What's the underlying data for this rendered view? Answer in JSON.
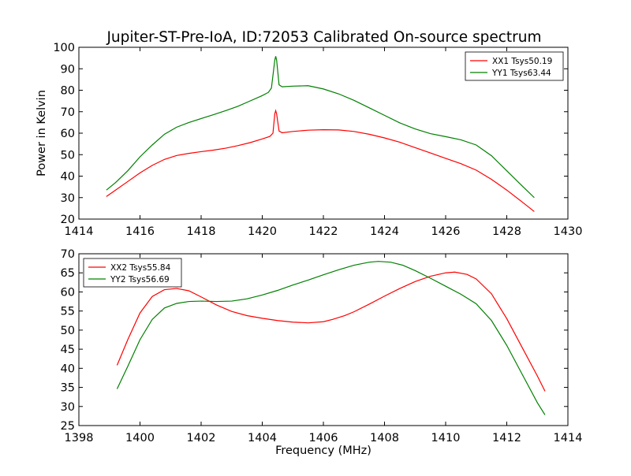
{
  "figure_title": "Jupiter-ST-Pre-IoA, ID:72053 Calibrated On-source spectrum",
  "chart_data": [
    {
      "type": "line",
      "title": "Jupiter-ST-Pre-IoA, ID:72053 Calibrated On-source spectrum",
      "xlabel": "",
      "ylabel": "Power in Kelvin",
      "xlim": [
        1414,
        1430
      ],
      "ylim": [
        20,
        100
      ],
      "xticks": [
        1414,
        1416,
        1418,
        1420,
        1422,
        1424,
        1426,
        1428,
        1430
      ],
      "yticks": [
        20,
        30,
        40,
        50,
        60,
        70,
        80,
        90,
        100
      ],
      "grid": false,
      "legend_position": "upper right",
      "series": [
        {
          "name": "XX1 Tsys50.19",
          "color": "#ff0000",
          "points": [
            [
              1414.9,
              30.5
            ],
            [
              1415.2,
              33.5
            ],
            [
              1415.6,
              37.5
            ],
            [
              1416.0,
              41.5
            ],
            [
              1416.4,
              45.0
            ],
            [
              1416.8,
              47.8
            ],
            [
              1417.2,
              49.6
            ],
            [
              1417.6,
              50.6
            ],
            [
              1418.0,
              51.4
            ],
            [
              1418.4,
              52.1
            ],
            [
              1418.8,
              53.0
            ],
            [
              1419.2,
              54.2
            ],
            [
              1419.6,
              55.6
            ],
            [
              1420.0,
              57.3
            ],
            [
              1420.25,
              58.5
            ],
            [
              1420.35,
              60.0
            ],
            [
              1420.41,
              69.0
            ],
            [
              1420.44,
              70.5
            ],
            [
              1420.47,
              69.0
            ],
            [
              1420.55,
              61.0
            ],
            [
              1420.65,
              60.2
            ],
            [
              1421.0,
              60.8
            ],
            [
              1421.5,
              61.4
            ],
            [
              1422.0,
              61.6
            ],
            [
              1422.5,
              61.5
            ],
            [
              1423.0,
              60.8
            ],
            [
              1423.5,
              59.5
            ],
            [
              1424.0,
              57.8
            ],
            [
              1424.5,
              55.8
            ],
            [
              1425.0,
              53.3
            ],
            [
              1425.5,
              50.8
            ],
            [
              1426.0,
              48.3
            ],
            [
              1426.5,
              45.8
            ],
            [
              1427.0,
              42.8
            ],
            [
              1427.5,
              38.5
            ],
            [
              1428.0,
              33.5
            ],
            [
              1428.5,
              28.0
            ],
            [
              1428.9,
              23.5
            ]
          ]
        },
        {
          "name": "YY1 Tsys63.44",
          "color": "#008000",
          "points": [
            [
              1414.9,
              33.5
            ],
            [
              1415.2,
              37.0
            ],
            [
              1415.6,
              42.5
            ],
            [
              1416.0,
              49.0
            ],
            [
              1416.4,
              54.5
            ],
            [
              1416.8,
              59.5
            ],
            [
              1417.2,
              62.8
            ],
            [
              1417.6,
              65.0
            ],
            [
              1418.0,
              66.8
            ],
            [
              1418.4,
              68.6
            ],
            [
              1418.8,
              70.5
            ],
            [
              1419.2,
              72.5
            ],
            [
              1419.6,
              75.0
            ],
            [
              1420.0,
              77.5
            ],
            [
              1420.2,
              79.0
            ],
            [
              1420.3,
              81.0
            ],
            [
              1420.41,
              94.0
            ],
            [
              1420.44,
              95.8
            ],
            [
              1420.47,
              94.0
            ],
            [
              1420.55,
              82.5
            ],
            [
              1420.65,
              81.6
            ],
            [
              1421.0,
              81.9
            ],
            [
              1421.5,
              82.1
            ],
            [
              1422.0,
              80.6
            ],
            [
              1422.5,
              78.3
            ],
            [
              1423.0,
              75.3
            ],
            [
              1423.5,
              71.8
            ],
            [
              1424.0,
              68.3
            ],
            [
              1424.5,
              64.8
            ],
            [
              1425.0,
              62.0
            ],
            [
              1425.5,
              59.8
            ],
            [
              1426.0,
              58.4
            ],
            [
              1426.5,
              56.9
            ],
            [
              1427.0,
              54.5
            ],
            [
              1427.5,
              49.5
            ],
            [
              1428.0,
              42.5
            ],
            [
              1428.5,
              35.5
            ],
            [
              1428.9,
              30.0
            ]
          ]
        }
      ]
    },
    {
      "type": "line",
      "title": "",
      "xlabel": "Frequency (MHz)",
      "ylabel": "",
      "xlim": [
        1398,
        1414
      ],
      "ylim": [
        25,
        70
      ],
      "xticks": [
        1398,
        1400,
        1402,
        1404,
        1406,
        1408,
        1410,
        1412,
        1414
      ],
      "yticks": [
        25,
        30,
        35,
        40,
        45,
        50,
        55,
        60,
        65,
        70
      ],
      "grid": false,
      "legend_position": "upper left",
      "series": [
        {
          "name": "XX2 Tsys55.84",
          "color": "#ff0000",
          "points": [
            [
              1399.25,
              40.8
            ],
            [
              1399.6,
              47.5
            ],
            [
              1400.0,
              54.5
            ],
            [
              1400.4,
              58.8
            ],
            [
              1400.8,
              60.6
            ],
            [
              1401.2,
              60.9
            ],
            [
              1401.6,
              60.3
            ],
            [
              1402.0,
              58.7
            ],
            [
              1402.5,
              56.6
            ],
            [
              1403.0,
              54.9
            ],
            [
              1403.5,
              53.8
            ],
            [
              1404.0,
              53.1
            ],
            [
              1404.5,
              52.5
            ],
            [
              1405.0,
              52.1
            ],
            [
              1405.5,
              51.9
            ],
            [
              1406.0,
              52.2
            ],
            [
              1406.3,
              52.8
            ],
            [
              1406.7,
              53.8
            ],
            [
              1407.0,
              54.8
            ],
            [
              1407.5,
              56.8
            ],
            [
              1408.0,
              58.9
            ],
            [
              1408.5,
              60.9
            ],
            [
              1409.0,
              62.7
            ],
            [
              1409.5,
              64.1
            ],
            [
              1410.0,
              65.0
            ],
            [
              1410.3,
              65.2
            ],
            [
              1410.7,
              64.6
            ],
            [
              1411.0,
              63.4
            ],
            [
              1411.5,
              59.5
            ],
            [
              1412.0,
              53.0
            ],
            [
              1412.5,
              45.5
            ],
            [
              1413.0,
              38.0
            ],
            [
              1413.25,
              34.0
            ]
          ]
        },
        {
          "name": "YY2 Tsys56.69",
          "color": "#008000",
          "points": [
            [
              1399.25,
              34.6
            ],
            [
              1399.6,
              40.5
            ],
            [
              1400.0,
              47.5
            ],
            [
              1400.4,
              52.8
            ],
            [
              1400.8,
              55.8
            ],
            [
              1401.2,
              57.0
            ],
            [
              1401.6,
              57.5
            ],
            [
              1402.0,
              57.6
            ],
            [
              1402.5,
              57.5
            ],
            [
              1403.0,
              57.6
            ],
            [
              1403.5,
              58.2
            ],
            [
              1404.0,
              59.2
            ],
            [
              1404.5,
              60.4
            ],
            [
              1405.0,
              61.8
            ],
            [
              1405.5,
              63.1
            ],
            [
              1406.0,
              64.5
            ],
            [
              1406.5,
              65.8
            ],
            [
              1407.0,
              67.0
            ],
            [
              1407.5,
              67.8
            ],
            [
              1407.8,
              68.0
            ],
            [
              1408.2,
              67.8
            ],
            [
              1408.6,
              67.0
            ],
            [
              1409.0,
              65.6
            ],
            [
              1409.5,
              63.6
            ],
            [
              1410.0,
              61.5
            ],
            [
              1410.5,
              59.4
            ],
            [
              1411.0,
              56.9
            ],
            [
              1411.5,
              52.5
            ],
            [
              1412.0,
              46.0
            ],
            [
              1412.5,
              38.5
            ],
            [
              1413.0,
              31.0
            ],
            [
              1413.25,
              27.8
            ]
          ]
        }
      ]
    }
  ]
}
